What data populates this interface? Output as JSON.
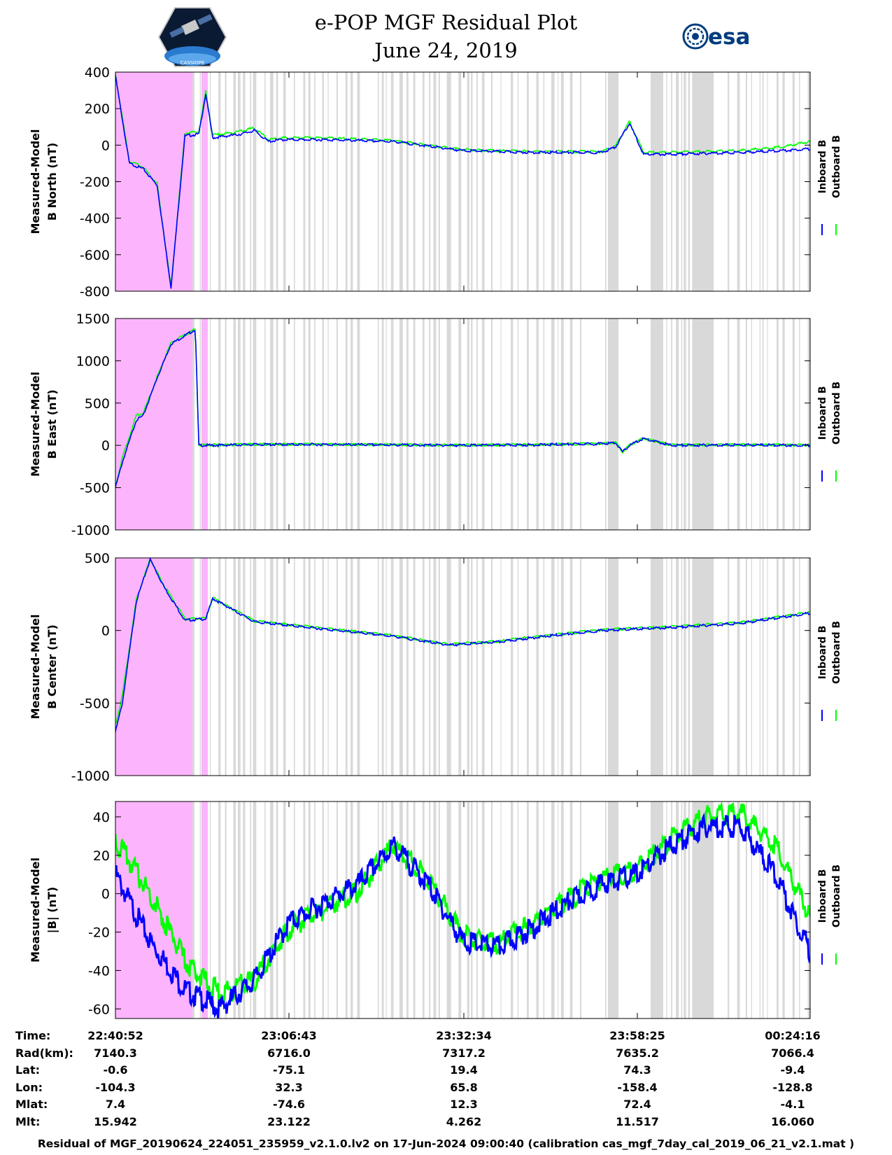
{
  "header": {
    "title_line1": "e-POP MGF Residual Plot",
    "title_line2": "June 24, 2019",
    "logo_left": "CASSIOPE",
    "logo_right": "esa",
    "logo_right_icon": "esa-swirl-icon"
  },
  "colors": {
    "inboard": "#0000ff",
    "outboard": "#00ff00",
    "excluded_region": "#fcb4fc",
    "gap_band": "#d9d9d9",
    "axes": "#000000"
  },
  "chart_data": [
    {
      "type": "line",
      "ylabel_line1": "Measured-Model",
      "ylabel_line2": "B North (nT)",
      "ylim": [
        -800,
        400
      ],
      "yticks": [
        "400",
        "200",
        "0",
        "-200",
        "-400",
        "-600",
        "-800"
      ],
      "yticks_values": [
        400,
        200,
        0,
        -200,
        -400,
        -600,
        -800
      ],
      "legend": [
        "Inboard B",
        "Outboard B"
      ],
      "series": [
        {
          "name": "Inboard B",
          "t": [
            0,
            0.02,
            0.04,
            0.06,
            0.08,
            0.1,
            0.12,
            0.13,
            0.14,
            0.16,
            0.18,
            0.2,
            0.22,
            0.24,
            0.3,
            0.4,
            0.5,
            0.6,
            0.7,
            0.72,
            0.74,
            0.76,
            0.8,
            0.9,
            0.96,
            1.0
          ],
          "v": [
            380,
            -100,
            -130,
            -220,
            -780,
            50,
            60,
            280,
            40,
            50,
            60,
            80,
            20,
            30,
            30,
            20,
            -30,
            -40,
            -40,
            -10,
            120,
            -50,
            -50,
            -40,
            -30,
            -20
          ]
        },
        {
          "name": "Outboard B",
          "t": [
            0,
            0.02,
            0.04,
            0.06,
            0.08,
            0.1,
            0.12,
            0.13,
            0.14,
            0.16,
            0.18,
            0.2,
            0.22,
            0.24,
            0.3,
            0.4,
            0.5,
            0.6,
            0.7,
            0.72,
            0.74,
            0.76,
            0.8,
            0.9,
            0.96,
            1.0
          ],
          "v": [
            390,
            -90,
            -120,
            -210,
            -775,
            65,
            75,
            295,
            55,
            65,
            75,
            95,
            30,
            40,
            40,
            25,
            -25,
            -35,
            -35,
            -5,
            130,
            -40,
            -40,
            -30,
            -10,
            20
          ]
        }
      ]
    },
    {
      "type": "line",
      "ylabel_line1": "Measured-Model",
      "ylabel_line2": "B East (nT)",
      "ylim": [
        -1000,
        1500
      ],
      "yticks": [
        "1500",
        "1000",
        "500",
        "0",
        "-500",
        "-1000"
      ],
      "yticks_values": [
        1500,
        1000,
        500,
        0,
        -500,
        -1000
      ],
      "legend": [
        "Inboard B",
        "Outboard B"
      ],
      "series": [
        {
          "name": "Inboard B",
          "t": [
            0,
            0.01,
            0.03,
            0.04,
            0.06,
            0.08,
            0.115,
            0.12,
            0.14,
            0.2,
            0.3,
            0.4,
            0.5,
            0.6,
            0.7,
            0.72,
            0.73,
            0.74,
            0.76,
            0.8,
            0.9,
            1.0
          ],
          "v": [
            -500,
            -200,
            300,
            350,
            800,
            1200,
            1370,
            0,
            0,
            10,
            10,
            5,
            0,
            5,
            20,
            30,
            -80,
            0,
            80,
            0,
            5,
            0
          ]
        },
        {
          "name": "Outboard B",
          "t": [
            0,
            0.01,
            0.03,
            0.04,
            0.06,
            0.08,
            0.115,
            0.12,
            0.14,
            0.2,
            0.3,
            0.4,
            0.5,
            0.6,
            0.7,
            0.72,
            0.73,
            0.74,
            0.76,
            0.8,
            0.9,
            1.0
          ],
          "v": [
            -480,
            -150,
            350,
            380,
            810,
            1210,
            1375,
            5,
            5,
            12,
            12,
            8,
            3,
            8,
            22,
            32,
            -75,
            3,
            82,
            3,
            8,
            3
          ]
        }
      ]
    },
    {
      "type": "line",
      "ylabel_line1": "Measured-Model",
      "ylabel_line2": "B Center (nT)",
      "ylim": [
        -1000,
        500
      ],
      "yticks": [
        "500",
        "0",
        "-500",
        "-1000"
      ],
      "yticks_values": [
        500,
        0,
        -500,
        -1000
      ],
      "legend": [
        "Inboard B",
        "Outboard B"
      ],
      "series": [
        {
          "name": "Inboard B",
          "t": [
            0,
            0.01,
            0.03,
            0.05,
            0.07,
            0.1,
            0.13,
            0.14,
            0.2,
            0.3,
            0.4,
            0.48,
            0.55,
            0.6,
            0.7,
            0.8,
            0.9,
            1.0
          ],
          "v": [
            -700,
            -500,
            200,
            490,
            300,
            70,
            80,
            220,
            60,
            10,
            -40,
            -100,
            -80,
            -50,
            0,
            20,
            50,
            120
          ]
        },
        {
          "name": "Outboard B",
          "t": [
            0,
            0.01,
            0.03,
            0.05,
            0.07,
            0.1,
            0.13,
            0.14,
            0.2,
            0.3,
            0.4,
            0.48,
            0.55,
            0.6,
            0.7,
            0.8,
            0.9,
            1.0
          ],
          "v": [
            -650,
            -450,
            210,
            495,
            310,
            80,
            85,
            225,
            65,
            15,
            -35,
            -95,
            -75,
            -45,
            5,
            25,
            55,
            125
          ]
        }
      ]
    },
    {
      "type": "line",
      "ylabel_line1": "Measured-Model",
      "ylabel_line2": "|B| (nT)",
      "ylim": [
        -65,
        48
      ],
      "yticks": [
        "40",
        "20",
        "0",
        "-20",
        "-40",
        "-60"
      ],
      "yticks_values": [
        40,
        20,
        0,
        -20,
        -40,
        -60
      ],
      "legend": [
        "Inboard B",
        "Outboard B"
      ],
      "series": [
        {
          "name": "Inboard B",
          "t": [
            0,
            0.05,
            0.1,
            0.15,
            0.2,
            0.25,
            0.3,
            0.35,
            0.4,
            0.45,
            0.5,
            0.55,
            0.6,
            0.65,
            0.7,
            0.75,
            0.8,
            0.85,
            0.9,
            0.95,
            1.0
          ],
          "v": [
            10,
            -25,
            -50,
            -60,
            -45,
            -15,
            -5,
            5,
            25,
            5,
            -25,
            -28,
            -18,
            -5,
            5,
            10,
            25,
            35,
            35,
            10,
            -30
          ]
        },
        {
          "name": "Outboard B",
          "t": [
            0,
            0.05,
            0.1,
            0.15,
            0.2,
            0.25,
            0.3,
            0.35,
            0.4,
            0.45,
            0.5,
            0.55,
            0.6,
            0.65,
            0.7,
            0.75,
            0.8,
            0.85,
            0.9,
            0.95,
            1.0
          ],
          "v": [
            28,
            0,
            -35,
            -52,
            -45,
            -18,
            -8,
            2,
            25,
            8,
            -22,
            -26,
            -16,
            -3,
            8,
            12,
            28,
            40,
            42,
            25,
            -12
          ]
        }
      ]
    }
  ],
  "time_axis": {
    "rows": [
      {
        "label": "Time:",
        "values": [
          "22:40:52",
          "23:06:43",
          "23:32:34",
          "23:58:25",
          "00:24:16"
        ]
      },
      {
        "label": "Rad(km):",
        "values": [
          "7140.3",
          "6716.0",
          "7317.2",
          "7635.2",
          "7066.4"
        ]
      },
      {
        "label": "Lat:",
        "values": [
          "-0.6",
          "-75.1",
          "19.4",
          "74.3",
          "-9.4"
        ]
      },
      {
        "label": "Lon:",
        "values": [
          "-104.3",
          "32.3",
          "65.8",
          "-158.4",
          "-128.8"
        ]
      },
      {
        "label": "Mlat:",
        "values": [
          "7.4",
          "-74.6",
          "12.3",
          "72.4",
          "-4.1"
        ]
      },
      {
        "label": "Mlt:",
        "values": [
          "15.942",
          "23.122",
          "4.262",
          "11.517",
          "16.060"
        ]
      }
    ]
  },
  "footer": "Residual of MGF_20190624_224051_235959_v2.1.0.lv2 on 17-Jun-2024 09:00:40 (calibration cas_mgf_7day_cal_2019_06_21_v2.1.mat )"
}
